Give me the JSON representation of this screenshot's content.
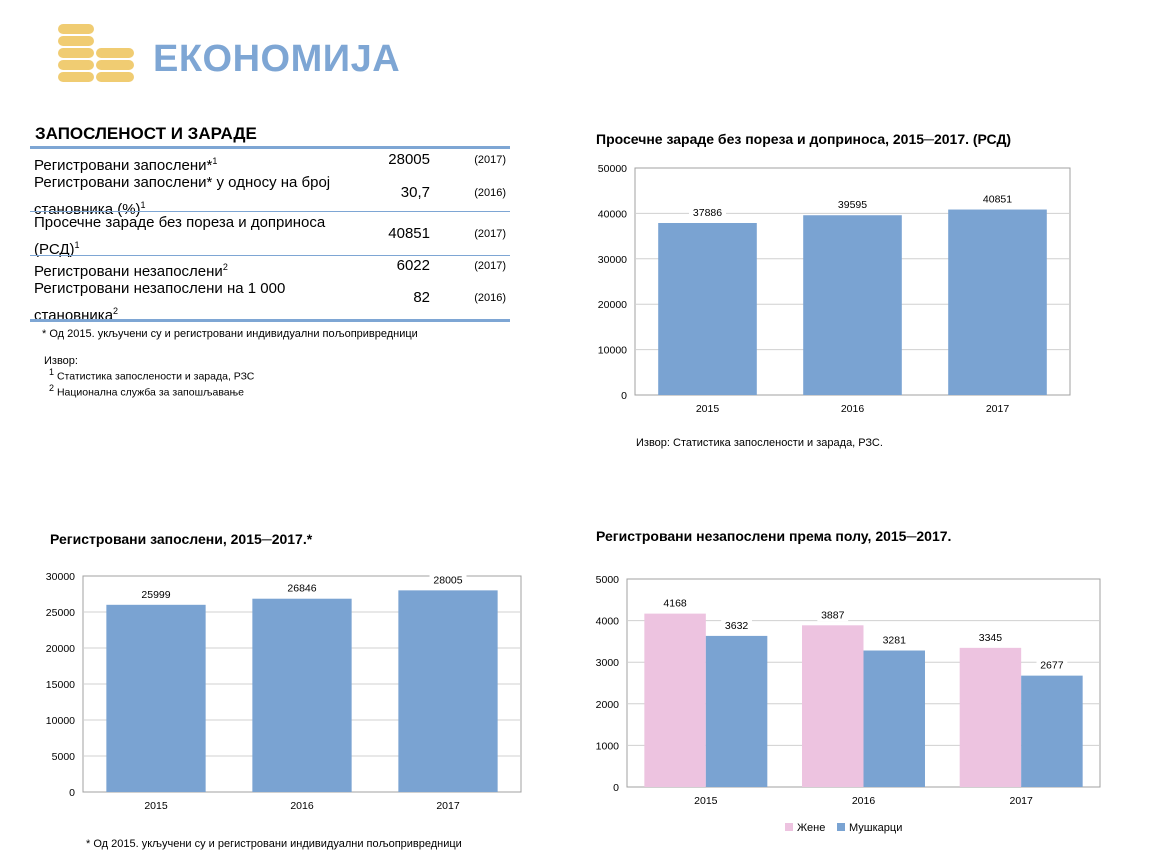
{
  "header": {
    "title": "ЕКОНОМИЈА",
    "icon": "coins-icon"
  },
  "colors": {
    "accent": "#7ea6d4",
    "bar_blue": "#7aa3d2",
    "bar_pink": "#edc3e0",
    "coin": "#f0cc72"
  },
  "table": {
    "title": "ЗАПОСЛЕНОСТ И ЗАРАДЕ",
    "rows": [
      {
        "label": "Регистровани запослени*",
        "sup": "1",
        "value": "28005",
        "year": "(2017)"
      },
      {
        "label": "Регистровани запослени* у односу на број становника (%)",
        "sup": "1",
        "value": "30,7",
        "year": "(2016)"
      },
      {
        "label": "Просечне зараде без пореза и доприноса (РСД)",
        "sup": "1",
        "value": "40851",
        "year": "(2017)"
      },
      {
        "label": "Регистровани незапослени",
        "sup": "2",
        "value": "6022",
        "year": "(2017)"
      },
      {
        "label": "Регистровани незапослени на 1 000 становника",
        "sup": "2",
        "value": "82",
        "year": "(2016)"
      }
    ],
    "footnote": "* Од 2015. укључени су и регистровани индивидуални пољопривредници",
    "source_label": "Извор:",
    "sources": [
      {
        "sup": "1",
        "text": "Статистика запослености и зарада, РЗС"
      },
      {
        "sup": "2",
        "text": "Национална служба за запошљавање"
      }
    ]
  },
  "chart_data": [
    {
      "type": "bar",
      "title": "Просечне зараде без пореза и доприноса, 2015─2017. (РСД)",
      "categories": [
        "2015",
        "2016",
        "2017"
      ],
      "series": [
        {
          "values": [
            37886,
            39595,
            40851
          ]
        }
      ],
      "ylim": [
        0,
        50000
      ],
      "yticks": [
        0,
        10000,
        20000,
        30000,
        40000,
        50000
      ],
      "grid": true,
      "note": "Извор: Статистика запослености и зарада, РЗС."
    },
    {
      "type": "bar",
      "title": "Регистровани запослени, 2015─2017.*",
      "categories": [
        "2015",
        "2016",
        "2017"
      ],
      "series": [
        {
          "values": [
            25999,
            26846,
            28005
          ]
        }
      ],
      "ylim": [
        0,
        30000
      ],
      "yticks": [
        0,
        5000,
        10000,
        15000,
        20000,
        25000,
        30000
      ],
      "grid": true,
      "note": "* Од 2015. укључени су и регистровани индивидуални пољопривредници"
    },
    {
      "type": "bar",
      "title": "Регистровани незапослени према полу, 2015─2017.",
      "categories": [
        "2015",
        "2016",
        "2017"
      ],
      "series": [
        {
          "name": "Жене",
          "values": [
            4168,
            3887,
            3345
          ]
        },
        {
          "name": "Мушкарци",
          "values": [
            3632,
            3281,
            2677
          ]
        }
      ],
      "ylim": [
        0,
        5000
      ],
      "yticks": [
        0,
        1000,
        2000,
        3000,
        4000,
        5000
      ],
      "grid": true,
      "legend": "bottom"
    }
  ]
}
